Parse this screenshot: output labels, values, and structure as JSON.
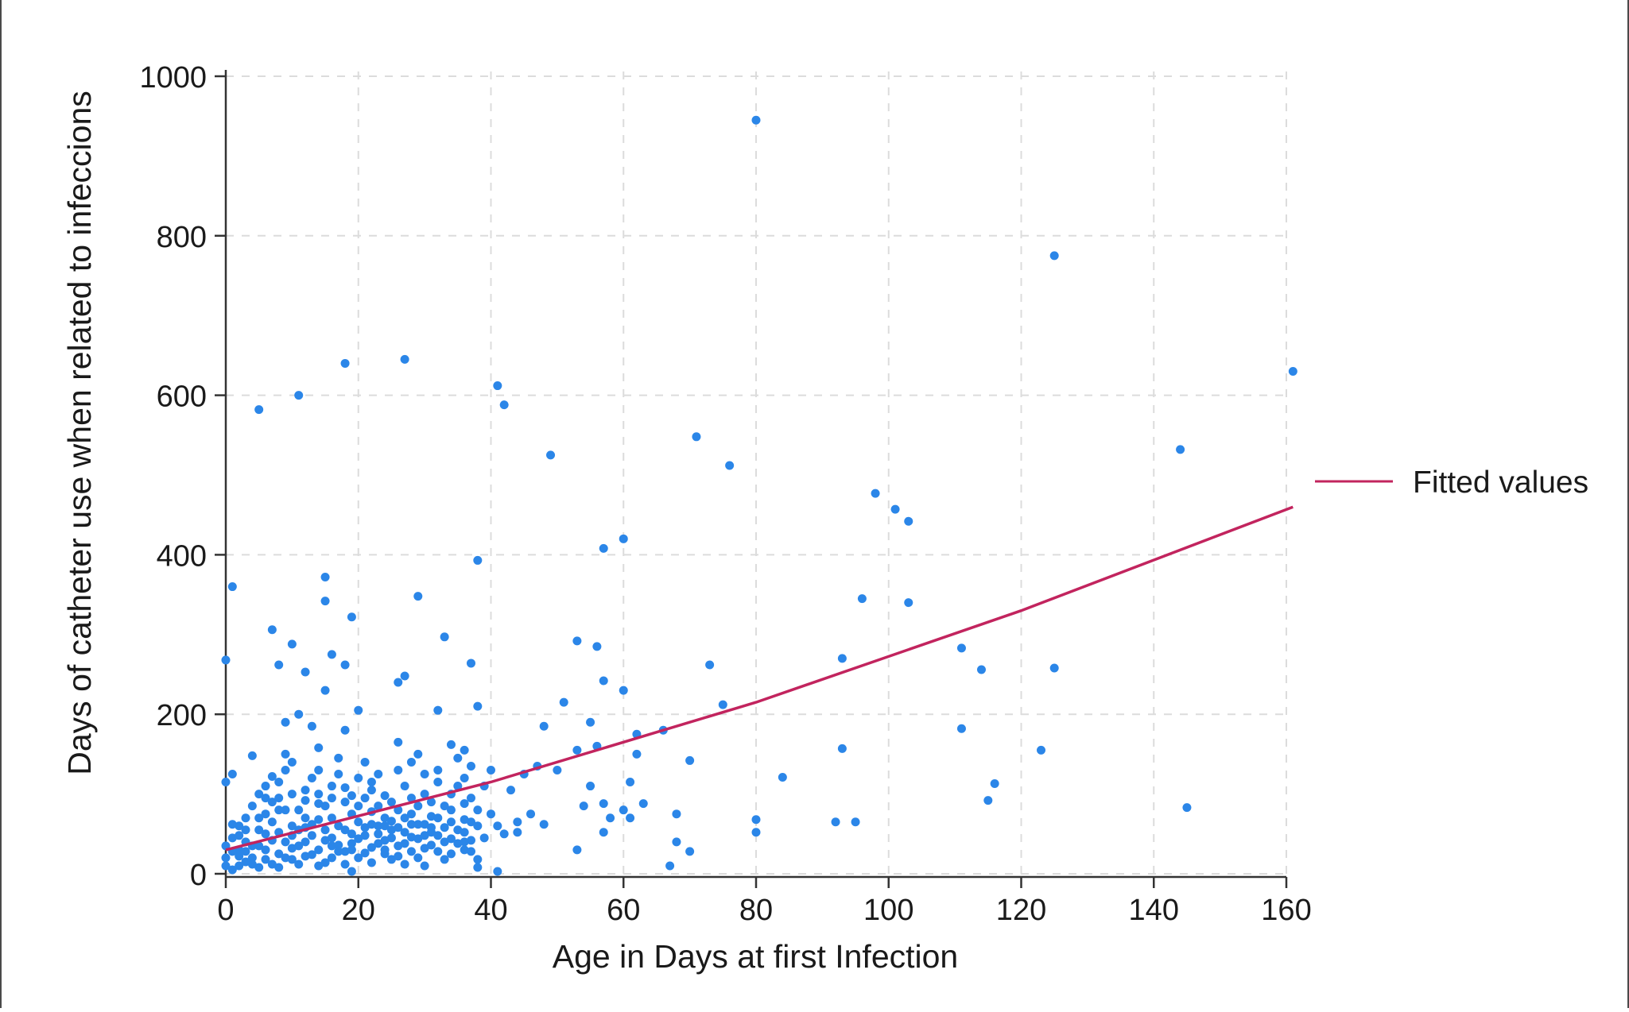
{
  "chart_data": {
    "type": "scatter",
    "title": "",
    "xlabel": "Age in Days at first Infection",
    "ylabel": "Days of catheter use when related to infeccions",
    "xlim": [
      0,
      160
    ],
    "ylim": [
      0,
      1000
    ],
    "x_ticks": [
      0,
      20,
      40,
      60,
      80,
      100,
      120,
      140,
      160
    ],
    "y_ticks": [
      0,
      200,
      400,
      600,
      800,
      1000
    ],
    "grid": true,
    "legend_placement": "right",
    "colors": {
      "points": "#2b86e8",
      "fit": "#c2245e",
      "grid": "#dcdcdc",
      "axis": "#333333"
    },
    "series": [
      {
        "kind": "points",
        "points": [
          [
            80,
            945
          ],
          [
            125,
            775
          ],
          [
            161,
            630
          ],
          [
            27,
            645
          ],
          [
            18,
            640
          ],
          [
            11,
            600
          ],
          [
            5,
            582
          ],
          [
            41,
            612
          ],
          [
            42,
            588
          ],
          [
            71,
            548
          ],
          [
            76,
            512
          ],
          [
            49,
            525
          ],
          [
            144,
            532
          ],
          [
            98,
            477
          ],
          [
            101,
            457
          ],
          [
            103,
            442
          ],
          [
            57,
            408
          ],
          [
            60,
            420
          ],
          [
            38,
            393
          ],
          [
            1,
            360
          ],
          [
            15,
            372
          ],
          [
            15,
            342
          ],
          [
            29,
            348
          ],
          [
            19,
            322
          ],
          [
            96,
            345
          ],
          [
            103,
            340
          ],
          [
            7,
            306
          ],
          [
            10,
            288
          ],
          [
            33,
            297
          ],
          [
            53,
            292
          ],
          [
            56,
            285
          ],
          [
            111,
            283
          ],
          [
            114,
            256
          ],
          [
            125,
            258
          ],
          [
            93,
            270
          ],
          [
            73,
            262
          ],
          [
            0,
            268
          ],
          [
            8,
            262
          ],
          [
            12,
            253
          ],
          [
            16,
            275
          ],
          [
            18,
            262
          ],
          [
            37,
            264
          ],
          [
            27,
            248
          ],
          [
            26,
            240
          ],
          [
            57,
            242
          ],
          [
            60,
            230
          ],
          [
            15,
            230
          ],
          [
            51,
            215
          ],
          [
            75,
            212
          ],
          [
            38,
            210
          ],
          [
            32,
            205
          ],
          [
            20,
            205
          ],
          [
            11,
            200
          ],
          [
            9,
            190
          ],
          [
            13,
            185
          ],
          [
            18,
            180
          ],
          [
            48,
            185
          ],
          [
            55,
            190
          ],
          [
            66,
            180
          ],
          [
            62,
            175
          ],
          [
            111,
            182
          ],
          [
            1,
            125
          ],
          [
            0,
            115
          ],
          [
            4,
            148
          ],
          [
            7,
            122
          ],
          [
            9,
            150
          ],
          [
            14,
            158
          ],
          [
            17,
            145
          ],
          [
            21,
            140
          ],
          [
            23,
            125
          ],
          [
            26,
            165
          ],
          [
            29,
            150
          ],
          [
            34,
            162
          ],
          [
            36,
            155
          ],
          [
            93,
            157
          ],
          [
            123,
            155
          ],
          [
            53,
            155
          ],
          [
            56,
            160
          ],
          [
            62,
            150
          ],
          [
            70,
            142
          ],
          [
            84,
            121
          ],
          [
            116,
            113
          ],
          [
            115,
            92
          ],
          [
            61,
            115
          ],
          [
            55,
            110
          ],
          [
            45,
            125
          ],
          [
            47,
            135
          ],
          [
            50,
            130
          ],
          [
            40,
            130
          ],
          [
            43,
            105
          ],
          [
            54,
            85
          ],
          [
            57,
            88
          ],
          [
            60,
            80
          ],
          [
            63,
            88
          ],
          [
            68,
            75
          ],
          [
            58,
            70
          ],
          [
            61,
            70
          ],
          [
            80,
            68
          ],
          [
            80,
            52
          ],
          [
            92,
            65
          ],
          [
            95,
            65
          ],
          [
            145,
            83
          ],
          [
            46,
            75
          ],
          [
            48,
            62
          ],
          [
            41,
            60
          ],
          [
            44,
            52
          ],
          [
            39,
            45
          ],
          [
            37,
            42
          ],
          [
            53,
            30
          ],
          [
            57,
            52
          ],
          [
            68,
            40
          ],
          [
            70,
            28
          ],
          [
            67,
            10
          ],
          [
            41,
            3
          ],
          [
            19,
            3
          ],
          [
            30,
            10
          ],
          [
            33,
            18
          ],
          [
            36,
            40
          ],
          [
            38,
            18
          ],
          [
            38,
            8
          ],
          [
            24,
            25
          ],
          [
            27,
            12
          ],
          [
            2,
            22
          ],
          [
            3,
            40
          ],
          [
            5,
            55
          ],
          [
            6,
            75
          ],
          [
            8,
            95
          ],
          [
            10,
            60
          ],
          [
            12,
            105
          ],
          [
            14,
            88
          ],
          [
            16,
            70
          ],
          [
            19,
            98
          ],
          [
            22,
            78
          ],
          [
            25,
            55
          ],
          [
            28,
            95
          ],
          [
            31,
            72
          ],
          [
            34,
            65
          ],
          [
            36,
            88
          ],
          [
            1,
            5
          ],
          [
            2,
            10
          ],
          [
            3,
            15
          ],
          [
            4,
            20
          ],
          [
            5,
            8
          ],
          [
            6,
            30
          ],
          [
            7,
            12
          ],
          [
            8,
            25
          ],
          [
            9,
            40
          ],
          [
            10,
            18
          ],
          [
            11,
            35
          ],
          [
            12,
            22
          ],
          [
            13,
            48
          ],
          [
            14,
            30
          ],
          [
            15,
            14
          ],
          [
            16,
            45
          ],
          [
            17,
            28
          ],
          [
            18,
            55
          ],
          [
            19,
            38
          ],
          [
            20,
            20
          ],
          [
            21,
            48
          ],
          [
            22,
            33
          ],
          [
            23,
            60
          ],
          [
            24,
            42
          ],
          [
            25,
            18
          ],
          [
            26,
            35
          ],
          [
            27,
            52
          ],
          [
            28,
            28
          ],
          [
            29,
            44
          ],
          [
            30,
            62
          ],
          [
            31,
            36
          ],
          [
            32,
            48
          ],
          [
            33,
            40
          ],
          [
            34,
            25
          ],
          [
            35,
            55
          ],
          [
            36,
            30
          ],
          [
            37,
            65
          ],
          [
            0,
            35
          ],
          [
            0,
            20
          ],
          [
            1,
            45
          ],
          [
            2,
            60
          ],
          [
            3,
            70
          ],
          [
            4,
            85
          ],
          [
            5,
            100
          ],
          [
            6,
            110
          ],
          [
            7,
            90
          ],
          [
            8,
            115
          ],
          [
            9,
            130
          ],
          [
            10,
            140
          ],
          [
            11,
            80
          ],
          [
            12,
            70
          ],
          [
            13,
            120
          ],
          [
            14,
            100
          ],
          [
            15,
            85
          ],
          [
            16,
            110
          ],
          [
            17,
            125
          ],
          [
            18,
            90
          ],
          [
            19,
            75
          ],
          [
            20,
            65
          ],
          [
            21,
            95
          ],
          [
            22,
            105
          ],
          [
            23,
            85
          ],
          [
            24,
            70
          ],
          [
            25,
            90
          ],
          [
            26,
            80
          ],
          [
            27,
            110
          ],
          [
            28,
            75
          ],
          [
            29,
            85
          ],
          [
            30,
            100
          ],
          [
            31,
            90
          ],
          [
            32,
            115
          ],
          [
            33,
            85
          ],
          [
            34,
            100
          ],
          [
            35,
            110
          ],
          [
            36,
            120
          ],
          [
            37,
            95
          ],
          [
            38,
            80
          ],
          [
            39,
            110
          ],
          [
            2,
            30
          ],
          [
            3,
            28
          ],
          [
            4,
            12
          ],
          [
            5,
            35
          ],
          [
            6,
            50
          ],
          [
            7,
            42
          ],
          [
            8,
            8
          ],
          [
            9,
            20
          ],
          [
            10,
            32
          ],
          [
            11,
            12
          ],
          [
            12,
            40
          ],
          [
            13,
            24
          ],
          [
            14,
            10
          ],
          [
            15,
            42
          ],
          [
            16,
            20
          ],
          [
            17,
            36
          ],
          [
            18,
            12
          ],
          [
            19,
            30
          ],
          [
            20,
            44
          ],
          [
            21,
            26
          ],
          [
            22,
            14
          ],
          [
            23,
            38
          ],
          [
            24,
            60
          ],
          [
            25,
            45
          ],
          [
            26,
            22
          ],
          [
            27,
            38
          ],
          [
            28,
            46
          ],
          [
            29,
            20
          ],
          [
            30,
            32
          ],
          [
            31,
            52
          ],
          [
            32,
            28
          ],
          [
            33,
            58
          ],
          [
            34,
            44
          ],
          [
            35,
            38
          ],
          [
            36,
            52
          ],
          [
            37,
            28
          ],
          [
            1,
            62
          ],
          [
            3,
            55
          ],
          [
            5,
            70
          ],
          [
            7,
            65
          ],
          [
            9,
            80
          ],
          [
            11,
            55
          ],
          [
            13,
            62
          ],
          [
            15,
            55
          ],
          [
            17,
            60
          ],
          [
            19,
            50
          ],
          [
            21,
            58
          ],
          [
            23,
            50
          ],
          [
            25,
            66
          ],
          [
            27,
            70
          ],
          [
            29,
            62
          ],
          [
            31,
            58
          ],
          [
            0,
            10
          ],
          [
            1,
            28
          ],
          [
            2,
            48
          ],
          [
            4,
            35
          ],
          [
            6,
            18
          ],
          [
            8,
            52
          ],
          [
            10,
            48
          ],
          [
            12,
            58
          ],
          [
            14,
            68
          ],
          [
            16,
            35
          ],
          [
            18,
            28
          ],
          [
            20,
            85
          ],
          [
            22,
            62
          ],
          [
            24,
            30
          ],
          [
            26,
            58
          ],
          [
            28,
            62
          ],
          [
            30,
            48
          ],
          [
            32,
            70
          ],
          [
            34,
            80
          ],
          [
            36,
            68
          ],
          [
            38,
            60
          ],
          [
            40,
            75
          ],
          [
            42,
            50
          ],
          [
            44,
            65
          ],
          [
            6,
            95
          ],
          [
            8,
            80
          ],
          [
            10,
            100
          ],
          [
            12,
            92
          ],
          [
            14,
            130
          ],
          [
            16,
            95
          ],
          [
            18,
            108
          ],
          [
            20,
            120
          ],
          [
            22,
            115
          ],
          [
            24,
            98
          ],
          [
            26,
            130
          ],
          [
            28,
            140
          ],
          [
            30,
            125
          ],
          [
            32,
            130
          ],
          [
            35,
            145
          ],
          [
            37,
            135
          ]
        ]
      },
      {
        "name": "Fitted values",
        "kind": "line",
        "points": [
          [
            0,
            30
          ],
          [
            40,
            115
          ],
          [
            80,
            215
          ],
          [
            120,
            330
          ],
          [
            161,
            460
          ]
        ]
      }
    ]
  }
}
